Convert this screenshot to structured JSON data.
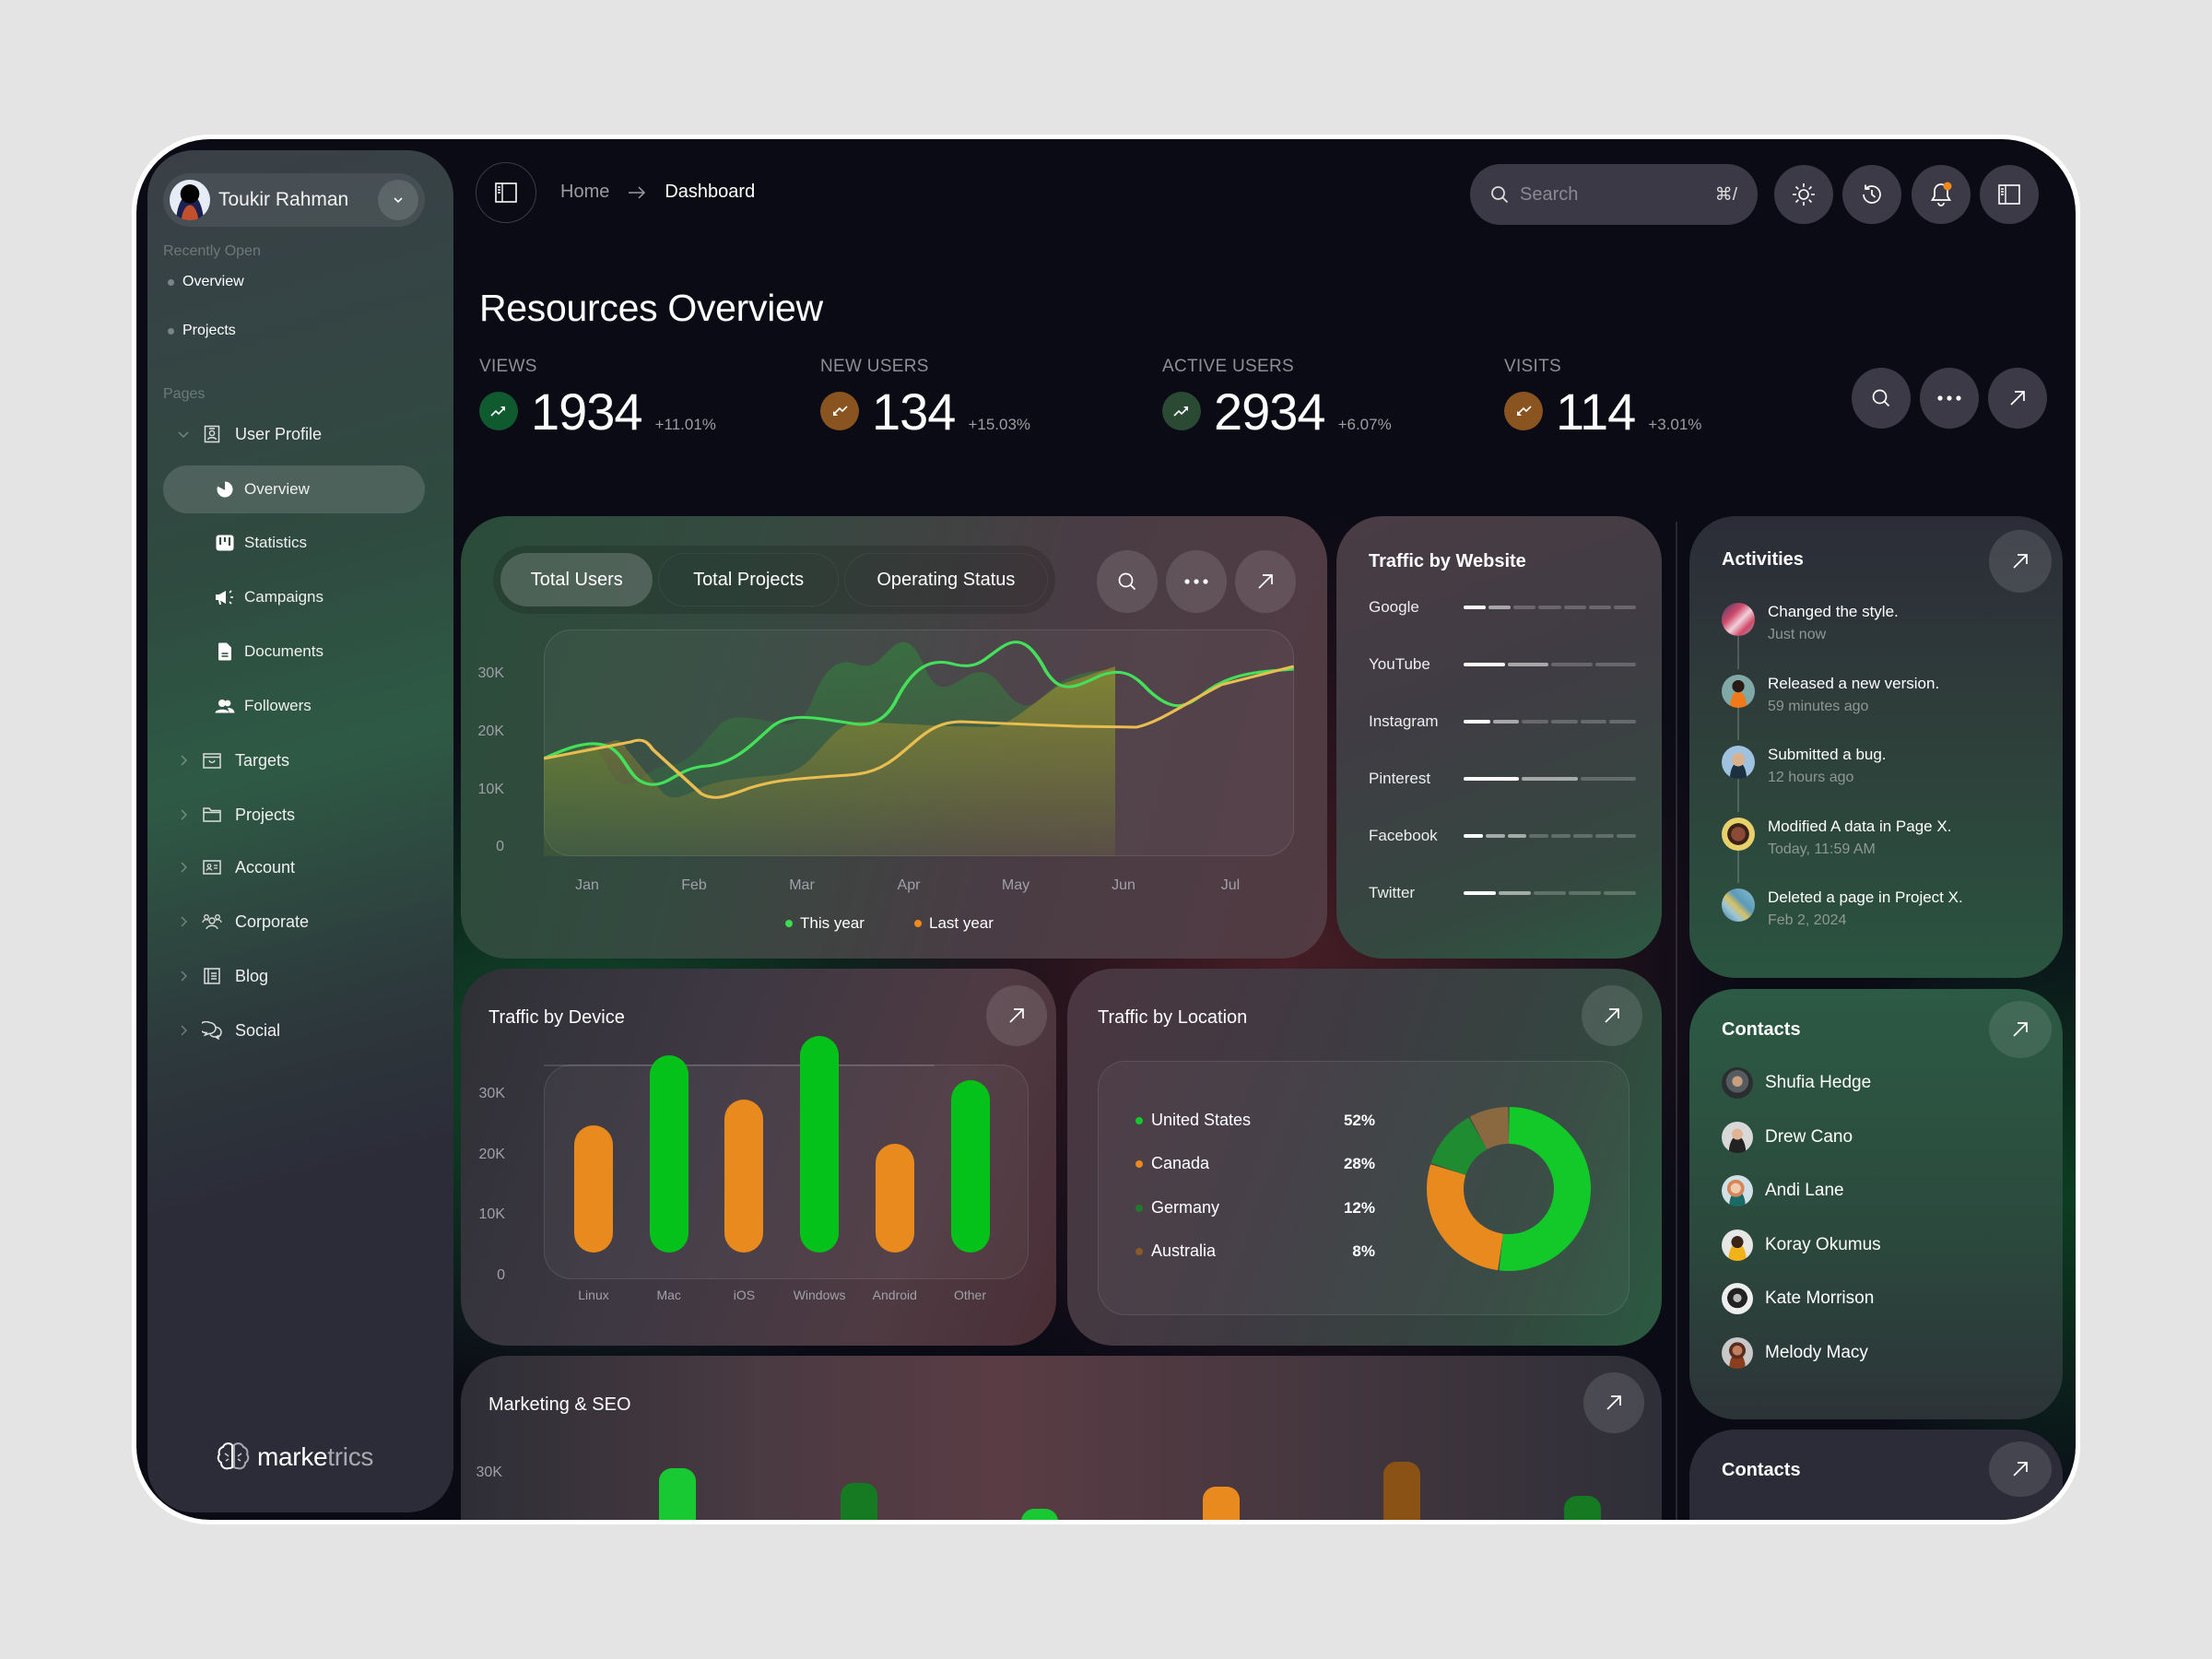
{
  "user": {
    "name": "Toukir Rahman"
  },
  "sidebar": {
    "recently_open_label": "Recently Open",
    "recent": [
      {
        "label": "Overview"
      },
      {
        "label": "Projects"
      }
    ],
    "pages_label": "Pages",
    "user_profile": {
      "label": "User Profile",
      "children": [
        {
          "label": "Overview",
          "icon": "pie-chart-icon",
          "active": true
        },
        {
          "label": "Statistics",
          "icon": "kanban-icon"
        },
        {
          "label": "Campaigns",
          "icon": "megaphone-icon"
        },
        {
          "label": "Documents",
          "icon": "document-icon"
        },
        {
          "label": "Followers",
          "icon": "users-icon"
        }
      ]
    },
    "items": [
      {
        "label": "Targets",
        "icon": "inbox-icon"
      },
      {
        "label": "Projects",
        "icon": "folder-icon"
      },
      {
        "label": "Account",
        "icon": "id-card-icon"
      },
      {
        "label": "Corporate",
        "icon": "team-icon"
      },
      {
        "label": "Blog",
        "icon": "blog-icon"
      },
      {
        "label": "Social",
        "icon": "chat-icon"
      }
    ],
    "logo": {
      "bold": "marke",
      "light": "trics"
    }
  },
  "topbar": {
    "breadcrumb": {
      "home": "Home",
      "current": "Dashboard"
    },
    "search": {
      "placeholder": "Search",
      "shortcut": "⌘/"
    },
    "notification_dot_color": "#f08a1c"
  },
  "page": {
    "title": "Resources Overview"
  },
  "stats": [
    {
      "label": "VIEWS",
      "value": "1934",
      "change": "+11.01%",
      "trend": "up",
      "color": "#0f5a2e"
    },
    {
      "label": "NEW USERS",
      "value": "134",
      "change": "+15.03%",
      "trend": "down",
      "color": "#8a5420"
    },
    {
      "label": "ACTIVE USERS",
      "value": "2934",
      "change": "+6.07%",
      "trend": "up",
      "color": "#2a4a33"
    },
    {
      "label": "VISITS",
      "value": "114",
      "change": "+3.01%",
      "trend": "down",
      "color": "#8a5420"
    }
  ],
  "users_card": {
    "tabs": [
      {
        "label": "Total Users",
        "active": true
      },
      {
        "label": "Total Projects"
      },
      {
        "label": "Operating Status"
      }
    ],
    "legend": [
      {
        "label": "This year",
        "color": "#3ddc52"
      },
      {
        "label": "Last year",
        "color": "#f08a1c"
      }
    ]
  },
  "website_card": {
    "title": "Traffic by Website",
    "rows": [
      {
        "name": "Google",
        "segments": 7,
        "bright": 1,
        "mid": 1
      },
      {
        "name": "YouTube",
        "segments": 4,
        "bright": 1,
        "mid": 1
      },
      {
        "name": "Instagram",
        "segments": 6,
        "bright": 1,
        "mid": 1
      },
      {
        "name": "Pinterest",
        "segments": 3,
        "bright": 1,
        "mid": 1
      },
      {
        "name": "Facebook",
        "segments": 8,
        "bright": 1,
        "mid": 2
      },
      {
        "name": "Twitter",
        "segments": 5,
        "bright": 1,
        "mid": 1
      }
    ]
  },
  "activities": {
    "title": "Activities",
    "items": [
      {
        "text": "Changed the style.",
        "time": "Just now"
      },
      {
        "text": "Released a new version.",
        "time": "59 minutes ago"
      },
      {
        "text": "Submitted a bug.",
        "time": "12 hours ago"
      },
      {
        "text": "Modified A data in Page X.",
        "time": "Today, 11:59 AM"
      },
      {
        "text": "Deleted a page in Project X.",
        "time": "Feb 2, 2024"
      }
    ]
  },
  "contacts": {
    "title": "Contacts",
    "items": [
      {
        "name": "Shufia Hedge"
      },
      {
        "name": "Drew Cano"
      },
      {
        "name": "Andi Lane"
      },
      {
        "name": "Koray Okumus"
      },
      {
        "name": "Kate Morrison"
      },
      {
        "name": "Melody Macy"
      }
    ]
  },
  "contacts2": {
    "title": "Contacts"
  },
  "device_card": {
    "title": "Traffic by Device"
  },
  "location_card": {
    "title": "Traffic by Location"
  },
  "marketing_card": {
    "title": "Marketing & SEO",
    "y_tick": "30K"
  },
  "chart_data": [
    {
      "type": "area",
      "title": "Total Users",
      "categories": [
        "Jan",
        "Feb",
        "Mar",
        "Apr",
        "May",
        "Jun",
        "Jul"
      ],
      "yticks": [
        "0",
        "10K",
        "20K",
        "30K"
      ],
      "ylim": [
        0,
        30000
      ],
      "series": [
        {
          "name": "This year",
          "color": "#3ddc52",
          "x": [
            0.0,
            0.17,
            0.35,
            0.52,
            0.63,
            0.87,
            1.0,
            1.25,
            1.38,
            1.65,
            1.97,
            2.35,
            2.5,
            2.78,
            3.17,
            3.42,
            3.65,
            3.85,
            4.1,
            4.38,
            4.7,
            4.97,
            5.27,
            5.58,
            5.88,
            6.2,
            6.45
          ],
          "y": [
            16000,
            17000,
            16500,
            12000,
            9500,
            10500,
            11000,
            12500,
            14500,
            18000,
            17500,
            17000,
            22000,
            28000,
            27000,
            28500,
            31500,
            29000,
            23500,
            24500,
            26000,
            23000,
            20500,
            23000,
            26000,
            27000,
            27500
          ]
        },
        {
          "name": "Last year",
          "color": "#f08a1c",
          "x": [
            0.0,
            0.6,
            1.0,
            1.55,
            2.0,
            2.55,
            3.0,
            3.45,
            4.0,
            4.5,
            5.0,
            5.5,
            6.0,
            6.45
          ],
          "y": [
            15000,
            16500,
            17500,
            11500,
            8500,
            10500,
            11000,
            11500,
            14500,
            18000,
            17500,
            17000,
            16500,
            28000
          ]
        }
      ]
    },
    {
      "type": "bar",
      "title": "Traffic by Device",
      "categories": [
        "Linux",
        "Mac",
        "iOS",
        "Windows",
        "Android",
        "Other"
      ],
      "values": [
        15000,
        26000,
        19000,
        29000,
        12000,
        22000
      ],
      "colors": [
        "#e88a1e",
        "#04c21a",
        "#e88a1e",
        "#04c21a",
        "#e88a1e",
        "#04c21a"
      ],
      "yticks": [
        "0",
        "10K",
        "20K",
        "30K"
      ],
      "ylim": [
        0,
        30000
      ]
    },
    {
      "type": "pie",
      "title": "Traffic by Location",
      "labels": [
        "United States",
        "Canada",
        "Germany",
        "Australia"
      ],
      "values": [
        52,
        28,
        12,
        8
      ],
      "display": [
        "52%",
        "28%",
        "12%",
        "8%"
      ],
      "colors": [
        "#13c92a",
        "#e88a1e",
        "#1f8c31",
        "#8a6840"
      ]
    },
    {
      "type": "bar",
      "title": "Marketing & SEO",
      "yticks": [
        "30K"
      ],
      "values_partial": [
        30000,
        27000,
        22000,
        26000,
        31000,
        25000
      ],
      "colors": [
        "#19c934",
        "#157a22",
        "#19c934",
        "#e88a1e",
        "#8a5214",
        "#157a22"
      ]
    }
  ]
}
